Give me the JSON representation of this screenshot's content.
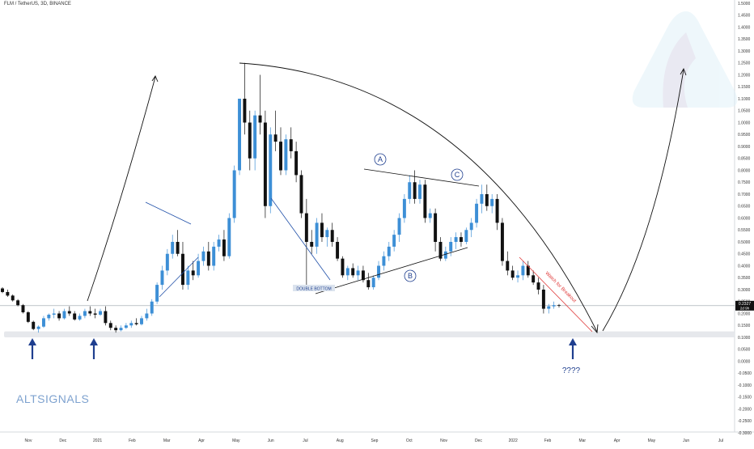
{
  "header": {
    "symbol_title": "FLM / TetherUS, 3D, BINANCE"
  },
  "watermark": {
    "brand": "ALTSIGNALS"
  },
  "annotations": {
    "wave_a": "A",
    "wave_b": "B",
    "wave_c": "C",
    "double_bottom": "DOUBLE BOTTOM",
    "watch_breakout": "Watch for Breakout",
    "question": "????"
  },
  "price_badge": {
    "price": "0.2327",
    "countdown": "2d 9h"
  },
  "colors": {
    "up": "#3d8fd6",
    "down": "#111111",
    "trend": "#1f4fa8",
    "support_zone": "#e6e8ec",
    "breakout": "#e03a3a",
    "arrow": "#1f3f8f"
  },
  "chart_data": {
    "type": "candlestick",
    "symbol": "FLM / TetherUS",
    "interval": "3D",
    "exchange": "BINANCE",
    "y_ticks": [
      "1.5000",
      "1.4500",
      "1.4000",
      "1.3500",
      "1.3000",
      "1.2500",
      "1.2000",
      "1.1500",
      "1.1000",
      "1.0500",
      "1.0000",
      "0.9500",
      "0.9000",
      "0.8500",
      "0.8000",
      "0.7500",
      "0.7000",
      "0.6500",
      "0.6000",
      "0.5500",
      "0.5000",
      "0.4500",
      "0.4000",
      "0.3500",
      "0.3000",
      "0.2500",
      "0.2000",
      "0.1500",
      "0.1000",
      "0.0500",
      "0.0000",
      "-0.0500",
      "-0.1000",
      "-0.1500",
      "-0.2000",
      "-0.2500",
      "-0.3000"
    ],
    "ylim": [
      -0.3,
      1.5
    ],
    "x_ticks": [
      "Nov",
      "Dec",
      "2021",
      "Feb",
      "Mar",
      "Apr",
      "May",
      "Jun",
      "Jul",
      "Aug",
      "Sep",
      "Oct",
      "Nov",
      "Dec",
      "2022",
      "Feb",
      "Mar",
      "Apr",
      "May",
      "Jun",
      "Jul"
    ],
    "support_zone": [
      0.1,
      0.125
    ],
    "last_price": 0.2327,
    "candles": [
      [
        0.305,
        0.31,
        0.285,
        0.29
      ],
      [
        0.29,
        0.3,
        0.27,
        0.275
      ],
      [
        0.275,
        0.28,
        0.25,
        0.255
      ],
      [
        0.255,
        0.26,
        0.23,
        0.235
      ],
      [
        0.235,
        0.24,
        0.2,
        0.205
      ],
      [
        0.205,
        0.21,
        0.16,
        0.165
      ],
      [
        0.165,
        0.17,
        0.13,
        0.135
      ],
      [
        0.135,
        0.15,
        0.12,
        0.145
      ],
      [
        0.145,
        0.19,
        0.14,
        0.18
      ],
      [
        0.18,
        0.2,
        0.17,
        0.195
      ],
      [
        0.195,
        0.22,
        0.18,
        0.2
      ],
      [
        0.2,
        0.21,
        0.17,
        0.18
      ],
      [
        0.18,
        0.22,
        0.175,
        0.21
      ],
      [
        0.21,
        0.23,
        0.19,
        0.2
      ],
      [
        0.2,
        0.21,
        0.17,
        0.175
      ],
      [
        0.175,
        0.2,
        0.17,
        0.19
      ],
      [
        0.19,
        0.22,
        0.18,
        0.21
      ],
      [
        0.21,
        0.23,
        0.19,
        0.2
      ],
      [
        0.2,
        0.22,
        0.18,
        0.195
      ],
      [
        0.195,
        0.22,
        0.19,
        0.21
      ],
      [
        0.21,
        0.23,
        0.15,
        0.16
      ],
      [
        0.16,
        0.17,
        0.13,
        0.14
      ],
      [
        0.14,
        0.15,
        0.12,
        0.13
      ],
      [
        0.13,
        0.15,
        0.125,
        0.14
      ],
      [
        0.14,
        0.16,
        0.135,
        0.15
      ],
      [
        0.15,
        0.17,
        0.14,
        0.16
      ],
      [
        0.16,
        0.18,
        0.15,
        0.155
      ],
      [
        0.155,
        0.19,
        0.15,
        0.18
      ],
      [
        0.18,
        0.22,
        0.17,
        0.2
      ],
      [
        0.2,
        0.26,
        0.19,
        0.25
      ],
      [
        0.25,
        0.33,
        0.24,
        0.32
      ],
      [
        0.32,
        0.4,
        0.3,
        0.38
      ],
      [
        0.38,
        0.47,
        0.36,
        0.45
      ],
      [
        0.45,
        0.53,
        0.43,
        0.5
      ],
      [
        0.5,
        0.55,
        0.44,
        0.45
      ],
      [
        0.45,
        0.5,
        0.3,
        0.32
      ],
      [
        0.32,
        0.4,
        0.3,
        0.38
      ],
      [
        0.38,
        0.42,
        0.34,
        0.36
      ],
      [
        0.36,
        0.45,
        0.35,
        0.42
      ],
      [
        0.42,
        0.48,
        0.4,
        0.46
      ],
      [
        0.46,
        0.5,
        0.38,
        0.4
      ],
      [
        0.4,
        0.5,
        0.38,
        0.48
      ],
      [
        0.48,
        0.53,
        0.46,
        0.51
      ],
      [
        0.51,
        0.55,
        0.42,
        0.44
      ],
      [
        0.44,
        0.62,
        0.43,
        0.6
      ],
      [
        0.6,
        0.82,
        0.58,
        0.8
      ],
      [
        0.8,
        1.1,
        0.78,
        1.1
      ],
      [
        1.1,
        1.25,
        0.95,
        1.0
      ],
      [
        1.0,
        1.05,
        0.8,
        0.85
      ],
      [
        0.85,
        1.05,
        0.8,
        1.03
      ],
      [
        1.03,
        1.2,
        0.95,
        1.0
      ],
      [
        1.0,
        1.05,
        0.6,
        0.65
      ],
      [
        0.65,
        0.98,
        0.62,
        0.95
      ],
      [
        0.95,
        1.05,
        0.88,
        0.92
      ],
      [
        0.92,
        0.98,
        0.78,
        0.8
      ],
      [
        0.8,
        0.95,
        0.78,
        0.93
      ],
      [
        0.93,
        0.98,
        0.85,
        0.88
      ],
      [
        0.88,
        0.92,
        0.75,
        0.78
      ],
      [
        0.78,
        0.8,
        0.6,
        0.62
      ],
      [
        0.62,
        0.68,
        0.3,
        0.5
      ],
      [
        0.5,
        0.55,
        0.45,
        0.48
      ],
      [
        0.48,
        0.6,
        0.45,
        0.58
      ],
      [
        0.58,
        0.62,
        0.5,
        0.52
      ],
      [
        0.52,
        0.56,
        0.48,
        0.55
      ],
      [
        0.55,
        0.58,
        0.48,
        0.5
      ],
      [
        0.5,
        0.52,
        0.42,
        0.43
      ],
      [
        0.43,
        0.44,
        0.35,
        0.36
      ],
      [
        0.36,
        0.4,
        0.34,
        0.39
      ],
      [
        0.39,
        0.41,
        0.35,
        0.36
      ],
      [
        0.36,
        0.4,
        0.34,
        0.38
      ],
      [
        0.38,
        0.4,
        0.33,
        0.34
      ],
      [
        0.34,
        0.37,
        0.3,
        0.31
      ],
      [
        0.31,
        0.36,
        0.3,
        0.35
      ],
      [
        0.35,
        0.42,
        0.34,
        0.4
      ],
      [
        0.4,
        0.46,
        0.38,
        0.44
      ],
      [
        0.44,
        0.5,
        0.42,
        0.48
      ],
      [
        0.48,
        0.55,
        0.46,
        0.53
      ],
      [
        0.53,
        0.62,
        0.5,
        0.6
      ],
      [
        0.6,
        0.7,
        0.58,
        0.68
      ],
      [
        0.68,
        0.78,
        0.66,
        0.75
      ],
      [
        0.75,
        0.8,
        0.66,
        0.68
      ],
      [
        0.68,
        0.76,
        0.66,
        0.74
      ],
      [
        0.74,
        0.76,
        0.58,
        0.6
      ],
      [
        0.6,
        0.64,
        0.58,
        0.62
      ],
      [
        0.62,
        0.64,
        0.46,
        0.5
      ],
      [
        0.5,
        0.52,
        0.42,
        0.43
      ],
      [
        0.43,
        0.48,
        0.42,
        0.46
      ],
      [
        0.46,
        0.52,
        0.44,
        0.5
      ],
      [
        0.5,
        0.54,
        0.47,
        0.52
      ],
      [
        0.52,
        0.54,
        0.48,
        0.5
      ],
      [
        0.5,
        0.56,
        0.49,
        0.55
      ],
      [
        0.55,
        0.6,
        0.52,
        0.58
      ],
      [
        0.58,
        0.68,
        0.56,
        0.66
      ],
      [
        0.66,
        0.74,
        0.62,
        0.7
      ],
      [
        0.7,
        0.74,
        0.63,
        0.65
      ],
      [
        0.65,
        0.7,
        0.62,
        0.68
      ],
      [
        0.68,
        0.7,
        0.55,
        0.58
      ],
      [
        0.58,
        0.6,
        0.4,
        0.42
      ],
      [
        0.42,
        0.46,
        0.36,
        0.38
      ],
      [
        0.38,
        0.4,
        0.34,
        0.35
      ],
      [
        0.35,
        0.38,
        0.33,
        0.36
      ],
      [
        0.36,
        0.42,
        0.34,
        0.4
      ],
      [
        0.4,
        0.42,
        0.35,
        0.36
      ],
      [
        0.36,
        0.38,
        0.32,
        0.33
      ],
      [
        0.33,
        0.35,
        0.28,
        0.3
      ],
      [
        0.3,
        0.32,
        0.2,
        0.22
      ],
      [
        0.22,
        0.24,
        0.2,
        0.23
      ],
      [
        0.23,
        0.25,
        0.22,
        0.235
      ],
      [
        0.235,
        0.24,
        0.225,
        0.2327
      ]
    ]
  }
}
